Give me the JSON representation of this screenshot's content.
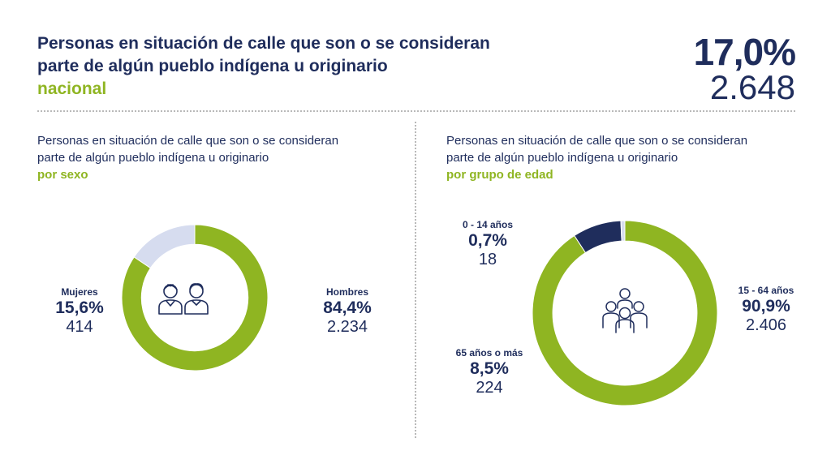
{
  "header": {
    "title_line1": "Personas en situación de calle que son o se consideran",
    "title_line2": "parte de algún pueblo indígena u originario",
    "title_accent": "nacional",
    "total_pct": "17,0%",
    "total_count": "2.648"
  },
  "left": {
    "sub_line1": "Personas en situación de calle que son o se consideran",
    "sub_line2": "parte de algún pueblo indígena u originario",
    "sub_accent": "por sexo"
  },
  "right": {
    "sub_line1": "Personas en situación de calle que son o se consideran",
    "sub_line2": "parte de algún pueblo indígena u originario",
    "sub_accent": "por grupo de edad"
  },
  "colors": {
    "navy": "#1f2d5c",
    "green": "#8fb522",
    "light": "#d6dcef"
  },
  "icons": {
    "left_center": "women-men-icon",
    "right_center": "group-of-people-icon"
  },
  "chart_data": [
    {
      "type": "pie",
      "donut": true,
      "title": "por sexo",
      "slices": [
        {
          "name": "Hombres",
          "pct_label": "84,4%",
          "count_label": "2.234",
          "value": 84.4,
          "count": 2234,
          "color": "#8fb522"
        },
        {
          "name": "Mujeres",
          "pct_label": "15,6%",
          "count_label": "414",
          "value": 15.6,
          "count": 414,
          "color": "#d6dcef"
        }
      ]
    },
    {
      "type": "pie",
      "donut": true,
      "title": "por grupo de edad",
      "slices": [
        {
          "name": "15 - 64 años",
          "pct_label": "90,9%",
          "count_label": "2.406",
          "value": 90.9,
          "count": 2406,
          "color": "#8fb522"
        },
        {
          "name": "65 años o más",
          "pct_label": "8,5%",
          "count_label": "224",
          "value": 8.5,
          "count": 224,
          "color": "#1f2d5c"
        },
        {
          "name": "0 - 14 años",
          "pct_label": "0,7%",
          "count_label": "18",
          "value": 0.7,
          "count": 18,
          "color": "#d6dcef"
        }
      ]
    }
  ]
}
